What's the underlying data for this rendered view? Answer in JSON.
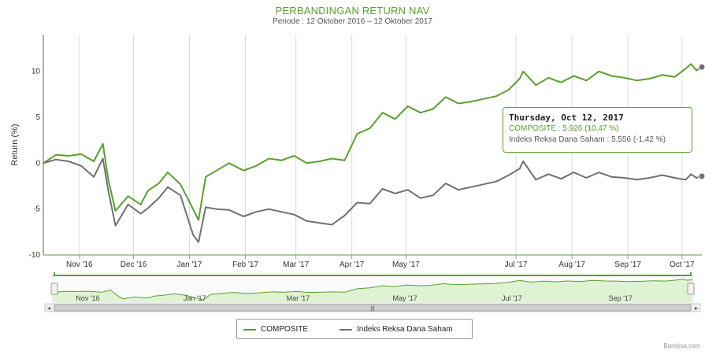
{
  "colors": {
    "composite": "#5aa02c",
    "index": "#707070",
    "navigator_fill": "#dff3d3",
    "plot_line": "#5aa02c"
  },
  "chart_data": {
    "type": "line",
    "title": "PERBANDINGAN RETURN NAV",
    "subtitle": "Periode : 12 Oktober 2016 – 12 Oktober 2017",
    "xlabel": "",
    "ylabel": "Return (%)",
    "ylim": [
      -10,
      14
    ],
    "yticks": [
      10,
      5,
      0,
      -5,
      -10
    ],
    "xticks": [
      "Nov '16",
      "Dec '16",
      "Jan '17",
      "Feb '17",
      "Mar '17",
      "Apr '17",
      "May '17",
      "Jul '17",
      "Aug '17",
      "Sep '17",
      "Oct '17"
    ],
    "grid": true,
    "legend_position": "bottom-center",
    "series": [
      {
        "name": "COMPOSITE",
        "points": [
          [
            "2016-10-12",
            0.0
          ],
          [
            "2016-10-19",
            0.9
          ],
          [
            "2016-10-26",
            0.8
          ],
          [
            "2016-11-02",
            1.0
          ],
          [
            "2016-11-09",
            0.2
          ],
          [
            "2016-11-14",
            2.1
          ],
          [
            "2016-11-17",
            -1.8
          ],
          [
            "2016-11-21",
            -5.2
          ],
          [
            "2016-11-28",
            -3.6
          ],
          [
            "2016-12-05",
            -4.5
          ],
          [
            "2016-12-09",
            -3.0
          ],
          [
            "2016-12-15",
            -2.2
          ],
          [
            "2016-12-20",
            -1.0
          ],
          [
            "2016-12-27",
            -2.3
          ],
          [
            "2017-01-03",
            -5.0
          ],
          [
            "2017-01-06",
            -6.2
          ],
          [
            "2017-01-10",
            -1.5
          ],
          [
            "2017-01-16",
            -0.8
          ],
          [
            "2017-01-23",
            0.0
          ],
          [
            "2017-01-31",
            -0.8
          ],
          [
            "2017-02-07",
            -0.3
          ],
          [
            "2017-02-14",
            0.5
          ],
          [
            "2017-02-21",
            0.3
          ],
          [
            "2017-02-28",
            0.8
          ],
          [
            "2017-03-07",
            0.0
          ],
          [
            "2017-03-14",
            0.2
          ],
          [
            "2017-03-21",
            0.5
          ],
          [
            "2017-03-28",
            0.3
          ],
          [
            "2017-04-04",
            3.2
          ],
          [
            "2017-04-11",
            3.8
          ],
          [
            "2017-04-18",
            5.5
          ],
          [
            "2017-04-25",
            4.8
          ],
          [
            "2017-05-02",
            6.2
          ],
          [
            "2017-05-09",
            5.5
          ],
          [
            "2017-05-16",
            5.9
          ],
          [
            "2017-05-23",
            7.2
          ],
          [
            "2017-05-30",
            6.5
          ],
          [
            "2017-06-06",
            6.7
          ],
          [
            "2017-06-13",
            7.0
          ],
          [
            "2017-06-20",
            7.3
          ],
          [
            "2017-06-27",
            8.0
          ],
          [
            "2017-07-03",
            9.2
          ],
          [
            "2017-07-05",
            10.0
          ],
          [
            "2017-07-12",
            8.5
          ],
          [
            "2017-07-19",
            9.3
          ],
          [
            "2017-07-26",
            8.8
          ],
          [
            "2017-08-02",
            9.5
          ],
          [
            "2017-08-09",
            9.0
          ],
          [
            "2017-08-16",
            10.0
          ],
          [
            "2017-08-23",
            9.5
          ],
          [
            "2017-08-30",
            9.3
          ],
          [
            "2017-09-06",
            9.0
          ],
          [
            "2017-09-13",
            9.2
          ],
          [
            "2017-09-20",
            9.6
          ],
          [
            "2017-09-27",
            9.4
          ],
          [
            "2017-10-03",
            10.3
          ],
          [
            "2017-10-06",
            10.8
          ],
          [
            "2017-10-09",
            10.1
          ],
          [
            "2017-10-12",
            10.47
          ]
        ]
      },
      {
        "name": "Indeks Reksa Dana Saham",
        "points": [
          [
            "2016-10-12",
            0.0
          ],
          [
            "2016-10-19",
            0.4
          ],
          [
            "2016-10-26",
            0.2
          ],
          [
            "2016-11-02",
            -0.3
          ],
          [
            "2016-11-09",
            -1.5
          ],
          [
            "2016-11-14",
            0.5
          ],
          [
            "2016-11-17",
            -3.0
          ],
          [
            "2016-11-21",
            -6.8
          ],
          [
            "2016-11-28",
            -4.5
          ],
          [
            "2016-12-05",
            -5.5
          ],
          [
            "2016-12-09",
            -4.9
          ],
          [
            "2016-12-15",
            -3.8
          ],
          [
            "2016-12-20",
            -2.6
          ],
          [
            "2016-12-27",
            -3.5
          ],
          [
            "2017-01-03",
            -7.8
          ],
          [
            "2017-01-06",
            -8.6
          ],
          [
            "2017-01-10",
            -4.8
          ],
          [
            "2017-01-16",
            -5.0
          ],
          [
            "2017-01-23",
            -5.1
          ],
          [
            "2017-01-31",
            -5.8
          ],
          [
            "2017-02-07",
            -5.3
          ],
          [
            "2017-02-14",
            -5.0
          ],
          [
            "2017-02-21",
            -5.3
          ],
          [
            "2017-02-28",
            -5.6
          ],
          [
            "2017-03-07",
            -6.3
          ],
          [
            "2017-03-14",
            -6.5
          ],
          [
            "2017-03-21",
            -6.7
          ],
          [
            "2017-03-28",
            -5.7
          ],
          [
            "2017-04-04",
            -4.3
          ],
          [
            "2017-04-11",
            -4.4
          ],
          [
            "2017-04-18",
            -2.8
          ],
          [
            "2017-04-25",
            -3.3
          ],
          [
            "2017-05-02",
            -2.9
          ],
          [
            "2017-05-09",
            -3.8
          ],
          [
            "2017-05-16",
            -3.5
          ],
          [
            "2017-05-23",
            -2.2
          ],
          [
            "2017-05-30",
            -2.9
          ],
          [
            "2017-06-06",
            -2.6
          ],
          [
            "2017-06-13",
            -2.3
          ],
          [
            "2017-06-20",
            -2.0
          ],
          [
            "2017-06-27",
            -1.3
          ],
          [
            "2017-07-03",
            -0.6
          ],
          [
            "2017-07-05",
            0.2
          ],
          [
            "2017-07-12",
            -1.8
          ],
          [
            "2017-07-19",
            -1.2
          ],
          [
            "2017-07-26",
            -1.7
          ],
          [
            "2017-08-02",
            -1.0
          ],
          [
            "2017-08-09",
            -1.6
          ],
          [
            "2017-08-16",
            -1.0
          ],
          [
            "2017-08-23",
            -1.5
          ],
          [
            "2017-08-30",
            -1.6
          ],
          [
            "2017-09-06",
            -1.8
          ],
          [
            "2017-09-13",
            -1.6
          ],
          [
            "2017-09-20",
            -1.3
          ],
          [
            "2017-09-27",
            -1.6
          ],
          [
            "2017-10-03",
            -1.8
          ],
          [
            "2017-10-06",
            -1.2
          ],
          [
            "2017-10-09",
            -1.6
          ],
          [
            "2017-10-12",
            -1.42
          ]
        ]
      }
    ],
    "navigator_xticks": [
      "Nov '16",
      "Jan '17",
      "Mar '17",
      "May '17",
      "Jul '17",
      "Sep '17"
    ]
  },
  "tooltip": {
    "date": "Thursday, Oct 12, 2017",
    "row1": "COMPOSITE : 5.926 (10,47 %)",
    "row2": "Indeks Reksa Dana Saham : 5.556 (-1,42 %)"
  },
  "legend": {
    "item1": "COMPOSITE",
    "item2": "Indeks Reksa Dana Saham"
  },
  "scrollbar": {
    "grip": "|||"
  },
  "watermark": "Bareksa.com"
}
